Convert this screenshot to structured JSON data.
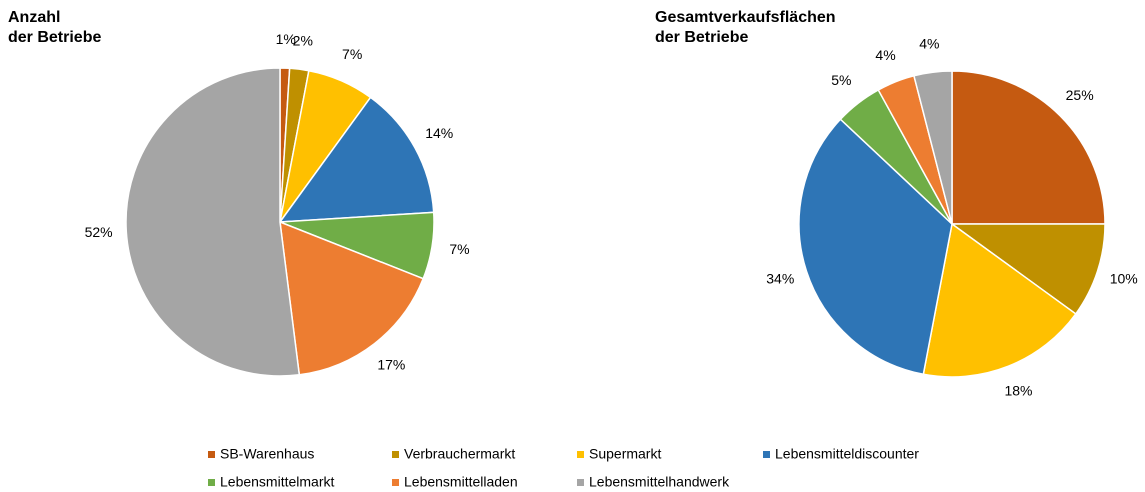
{
  "chart_data": [
    {
      "type": "pie",
      "title": "Anzahl\nder Betriebe",
      "values": [
        1,
        2,
        7,
        14,
        7,
        17,
        52
      ],
      "value_labels": [
        "1%",
        "2%",
        "7%",
        "14%",
        "7%",
        "17%",
        "52%"
      ]
    },
    {
      "type": "pie",
      "title": "Gesamtverkaufsflächen\nder Betriebe",
      "values": [
        25,
        10,
        18,
        34,
        5,
        4,
        4
      ],
      "value_labels": [
        "25%",
        "10%",
        "18%",
        "34%",
        "5%",
        "4%",
        "4%"
      ]
    }
  ],
  "legend": {
    "items": [
      {
        "name": "SB-Warenhaus",
        "color": "#c55a11"
      },
      {
        "name": "Verbrauchermarkt",
        "color": "#bf9000"
      },
      {
        "name": "Supermarkt",
        "color": "#ffc000"
      },
      {
        "name": "Lebensmitteldiscounter",
        "color": "#2e75b6"
      },
      {
        "name": "Lebensmittelmarkt",
        "color": "#70ad47"
      },
      {
        "name": "Lebensmittelladen",
        "color": "#ed7d31"
      },
      {
        "name": "Lebensmittelhandwerk",
        "color": "#a5a5a5"
      }
    ]
  }
}
